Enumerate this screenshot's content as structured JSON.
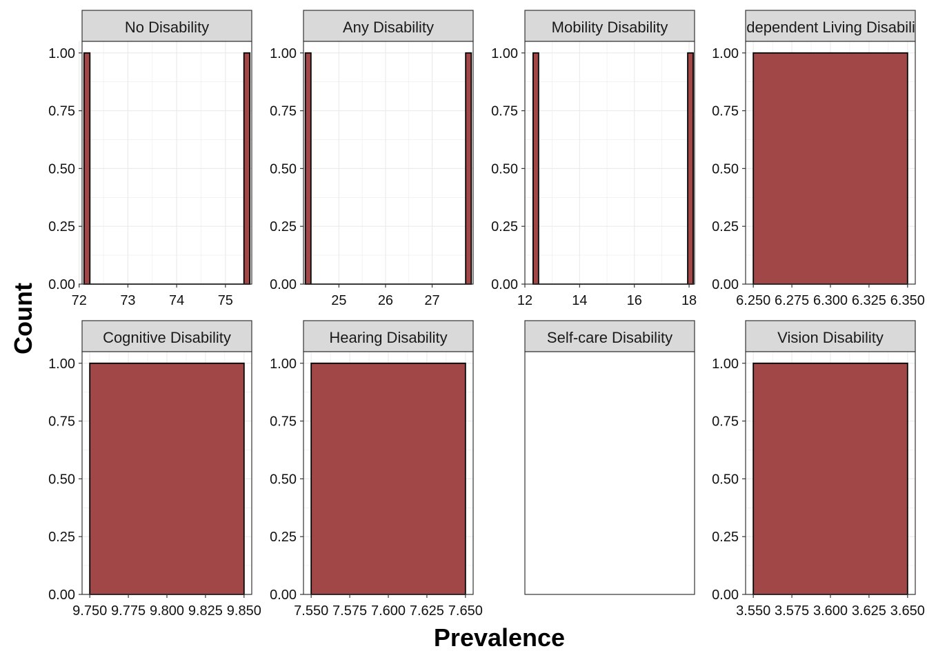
{
  "chart_data": {
    "type": "bar",
    "subtype": "faceted-histogram",
    "xlabel": "Prevalence",
    "ylabel": "Count",
    "grid": true,
    "colors": {
      "bar_fill": "#a24747",
      "bar_stroke": "#000000",
      "strip_fill": "#d9d9d9",
      "grid": "#ebebeb"
    },
    "facets": [
      {
        "title": "No Disability",
        "xlim": [
          72.06,
          75.54
        ],
        "xticks": [
          72,
          73,
          74,
          75
        ],
        "xtick_labels": [
          "72",
          "73",
          "74",
          "75"
        ],
        "ylim": [
          0,
          1.05
        ],
        "yticks": [
          0,
          0.25,
          0.5,
          0.75,
          1
        ],
        "ytick_labels": [
          "0.00",
          "0.25",
          "0.50",
          "0.75",
          "1.00"
        ],
        "bars": [
          {
            "x0": 72.1,
            "x1": 72.22,
            "count": 1
          },
          {
            "x0": 75.38,
            "x1": 75.5,
            "count": 1
          }
        ]
      },
      {
        "title": "Any Disability",
        "xlim": [
          24.24,
          27.88
        ],
        "xticks": [
          25,
          26,
          27
        ],
        "xtick_labels": [
          "25",
          "26",
          "27"
        ],
        "ylim": [
          0,
          1.05
        ],
        "yticks": [
          0,
          0.25,
          0.5,
          0.75,
          1
        ],
        "ytick_labels": [
          "0.00",
          "0.25",
          "0.50",
          "0.75",
          "1.00"
        ],
        "bars": [
          {
            "x0": 24.28,
            "x1": 24.4,
            "count": 1
          },
          {
            "x0": 27.72,
            "x1": 27.84,
            "count": 1
          }
        ]
      },
      {
        "title": "Mobility Disability",
        "xlim": [
          12.0,
          18.2
        ],
        "xticks": [
          12,
          14,
          16,
          18
        ],
        "xtick_labels": [
          "12",
          "14",
          "16",
          "18"
        ],
        "ylim": [
          0,
          1.05
        ],
        "yticks": [
          0,
          0.25,
          0.5,
          0.75,
          1
        ],
        "ytick_labels": [
          "0.00",
          "0.25",
          "0.50",
          "0.75",
          "1.00"
        ],
        "bars": [
          {
            "x0": 12.3,
            "x1": 12.5,
            "count": 1
          },
          {
            "x0": 17.95,
            "x1": 18.15,
            "count": 1
          }
        ]
      },
      {
        "title": "Independent Living Disability",
        "xlim": [
          6.245,
          6.355
        ],
        "xticks": [
          6.25,
          6.275,
          6.3,
          6.325,
          6.35
        ],
        "xtick_labels": [
          "6.250",
          "6.275",
          "6.300",
          "6.325",
          "6.350"
        ],
        "ylim": [
          0,
          1.05
        ],
        "yticks": [
          0,
          0.25,
          0.5,
          0.75,
          1
        ],
        "ytick_labels": [
          "0.00",
          "0.25",
          "0.50",
          "0.75",
          "1.00"
        ],
        "bars": [
          {
            "x0": 6.25,
            "x1": 6.35,
            "count": 1
          }
        ]
      },
      {
        "title": "Cognitive Disability",
        "xlim": [
          9.745,
          9.855
        ],
        "xticks": [
          9.75,
          9.775,
          9.8,
          9.825,
          9.85
        ],
        "xtick_labels": [
          "9.750",
          "9.775",
          "9.800",
          "9.825",
          "9.850"
        ],
        "ylim": [
          0,
          1.05
        ],
        "yticks": [
          0,
          0.25,
          0.5,
          0.75,
          1
        ],
        "ytick_labels": [
          "0.00",
          "0.25",
          "0.50",
          "0.75",
          "1.00"
        ],
        "bars": [
          {
            "x0": 9.75,
            "x1": 9.85,
            "count": 1
          }
        ]
      },
      {
        "title": "Hearing Disability",
        "xlim": [
          7.545,
          7.655
        ],
        "xticks": [
          7.55,
          7.575,
          7.6,
          7.625,
          7.65
        ],
        "xtick_labels": [
          "7.550",
          "7.575",
          "7.600",
          "7.625",
          "7.650"
        ],
        "ylim": [
          0,
          1.05
        ],
        "yticks": [
          0,
          0.25,
          0.5,
          0.75,
          1
        ],
        "ytick_labels": [
          "0.00",
          "0.25",
          "0.50",
          "0.75",
          "1.00"
        ],
        "bars": [
          {
            "x0": 7.55,
            "x1": 7.65,
            "count": 1
          }
        ]
      },
      {
        "title": "Self-care Disability",
        "empty": true,
        "xticks": [],
        "xtick_labels": [],
        "yticks": [],
        "ytick_labels": [],
        "bars": []
      },
      {
        "title": "Vision Disability",
        "xlim": [
          3.545,
          3.655
        ],
        "xticks": [
          3.55,
          3.575,
          3.6,
          3.625,
          3.65
        ],
        "xtick_labels": [
          "3.550",
          "3.575",
          "3.600",
          "3.625",
          "3.650"
        ],
        "ylim": [
          0,
          1.05
        ],
        "yticks": [
          0,
          0.25,
          0.5,
          0.75,
          1
        ],
        "ytick_labels": [
          "0.00",
          "0.25",
          "0.50",
          "0.75",
          "1.00"
        ],
        "bars": [
          {
            "x0": 3.55,
            "x1": 3.65,
            "count": 1
          }
        ]
      }
    ]
  }
}
